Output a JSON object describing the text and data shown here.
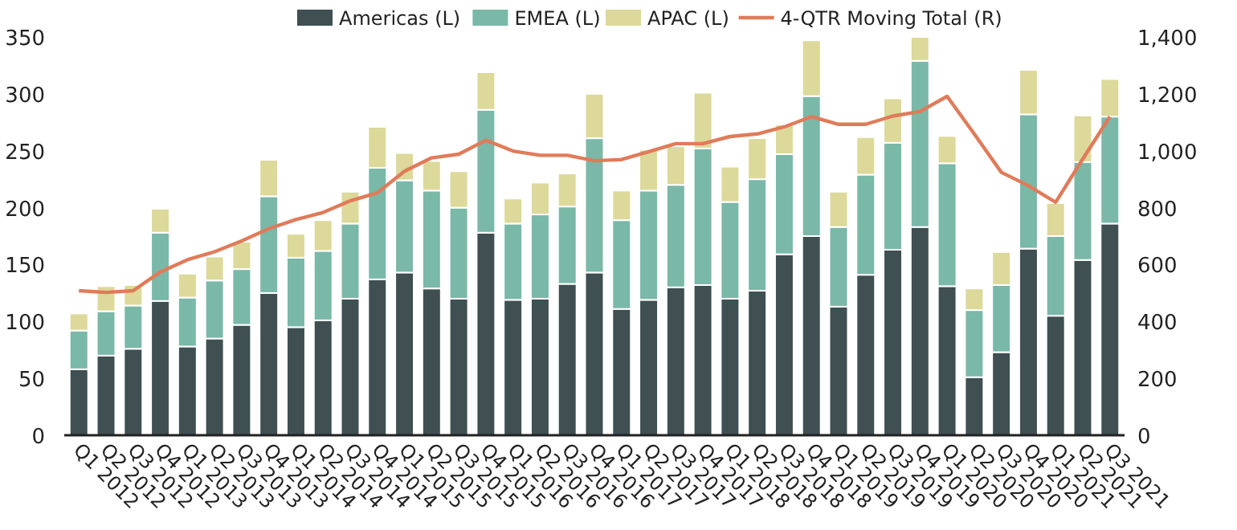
{
  "chart_data": {
    "type": "bar",
    "stacked": true,
    "categories": [
      "Q1 2012",
      "Q2 2012",
      "Q3 2012",
      "Q4 2012",
      "Q1 2013",
      "Q2 2013",
      "Q3 2013",
      "Q4 2013",
      "Q1 2014",
      "Q2 2014",
      "Q3 2014",
      "Q4 2014",
      "Q1 2015",
      "Q2 2015",
      "Q3 2015",
      "Q4 2015",
      "Q1 2016",
      "Q2 2016",
      "Q3 2016",
      "Q4 2016",
      "Q1 2017",
      "Q2 2017",
      "Q3 2017",
      "Q4 2017",
      "Q1 2018",
      "Q2 2018",
      "Q3 2018",
      "Q4 2018",
      "Q1 2019",
      "Q2 2019",
      "Q3 2019",
      "Q4 2019",
      "Q1 2020",
      "Q2 2020",
      "Q3 2020",
      "Q4 2020",
      "Q1 2021",
      "Q2 2021",
      "Q3 2021"
    ],
    "series": [
      {
        "name": "Americas (L)",
        "color": "#3f4f52",
        "values": [
          58,
          70,
          76,
          118,
          78,
          85,
          97,
          125,
          95,
          101,
          120,
          137,
          143,
          129,
          120,
          178,
          119,
          120,
          133,
          143,
          111,
          119,
          130,
          132,
          120,
          127,
          159,
          175,
          113,
          141,
          163,
          183,
          131,
          51,
          73,
          164,
          105,
          154,
          186
        ]
      },
      {
        "name": "EMEA (L)",
        "color": "#7ab8a8",
        "values": [
          34,
          39,
          38,
          60,
          43,
          51,
          49,
          85,
          61,
          61,
          66,
          98,
          81,
          86,
          80,
          108,
          67,
          74,
          68,
          118,
          78,
          96,
          90,
          120,
          85,
          98,
          88,
          123,
          70,
          88,
          94,
          146,
          108,
          59,
          59,
          118,
          70,
          86,
          94
        ]
      },
      {
        "name": "APAC (L)",
        "color": "#dcd99a",
        "values": [
          15,
          22,
          18,
          21,
          21,
          21,
          24,
          32,
          21,
          27,
          28,
          36,
          24,
          26,
          32,
          33,
          22,
          28,
          29,
          39,
          26,
          36,
          34,
          49,
          31,
          36,
          26,
          49,
          31,
          33,
          39,
          21,
          24,
          19,
          29,
          39,
          29,
          41,
          33
        ]
      },
      {
        "name": "4-QTR Moving Total (R)",
        "type": "line",
        "axis": "y2",
        "color": "#e07b5a",
        "values": [
          508,
          502,
          508,
          574,
          617,
          645,
          683,
          726,
          758,
          783,
          824,
          852,
          928,
          975,
          988,
          1037,
          999,
          984,
          984,
          965,
          969,
          997,
          1025,
          1025,
          1050,
          1059,
          1084,
          1120,
          1093,
          1093,
          1122,
          1138,
          1191,
          1059,
          924,
          877,
          819,
          971,
          1120
        ]
      }
    ],
    "ylim": [
      0,
      350
    ],
    "yticks": [
      0,
      50,
      100,
      150,
      200,
      250,
      300,
      350
    ],
    "y2lim": [
      0,
      1400
    ],
    "y2ticks": [
      0,
      {
        "value": 200,
        "label": "200"
      },
      {
        "value": 400,
        "label": "400"
      },
      {
        "value": 600,
        "label": "600"
      },
      {
        "value": 800,
        "label": "800"
      },
      {
        "value": 1000,
        "label": "1,000"
      },
      {
        "value": 1200,
        "label": "1,200"
      },
      {
        "value": 1400,
        "label": "1,400"
      }
    ],
    "grid": false,
    "legend": "top",
    "marker": "none",
    "line_style": "solid"
  }
}
